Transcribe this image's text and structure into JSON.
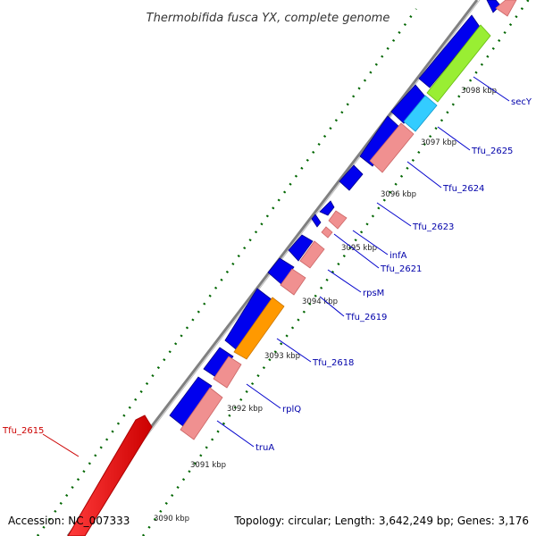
{
  "header": {
    "title": "Thermobifida fusca YX, complete genome"
  },
  "footer": {
    "accession": "Accession: NC_007333",
    "topology": "Topology: circular; Length: 3,642,249 bp; Genes: 3,176"
  },
  "scale": {
    "tick_labels": [
      "3090 kbp",
      "3091 kbp",
      "3092 kbp",
      "3093 kbp",
      "3094 kbp",
      "3095 kbp",
      "3096 kbp",
      "3097 kbp",
      "3098 kbp"
    ]
  },
  "gene_labels": [
    "Tfu_2615",
    "truA",
    "rplQ",
    "Tfu_2618",
    "Tfu_2619",
    "rpsM",
    "Tfu_2621",
    "infA",
    "Tfu_2623",
    "Tfu_2624",
    "Tfu_2625",
    "secY"
  ],
  "colors": {
    "backbone": "#808080",
    "cds_forward": "#0000ee",
    "rna_highlight": "#f09090",
    "orange_feature": "#ff9900",
    "cyan_feature": "#33ccff",
    "green_feature": "#99ee33",
    "red_feature": "#ee1111",
    "dots_green": "#006600",
    "label_blue": "#0000aa",
    "label_red": "#cc0000"
  }
}
